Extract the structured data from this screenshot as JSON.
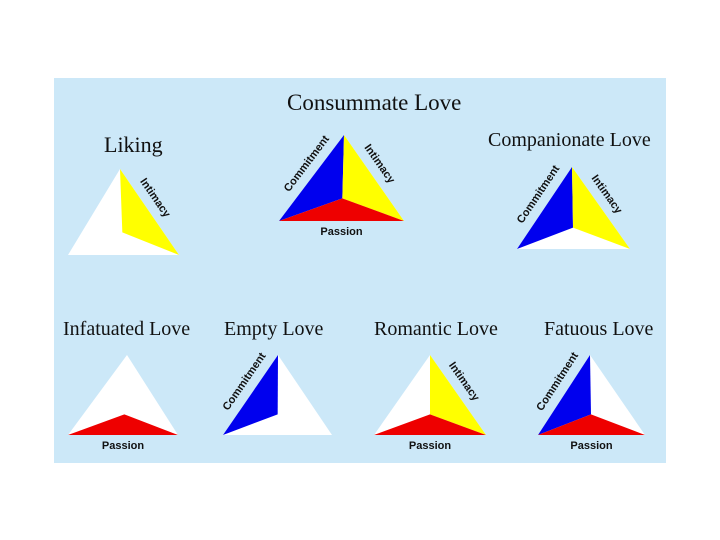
{
  "colors": {
    "background": "#cce8f8",
    "intimacy": "#ffff00",
    "commitment": "#0000ee",
    "passion": "#ee0000",
    "empty": "#ffffff"
  },
  "diagrams": [
    {
      "id": "consummate",
      "title": "Consummate Love",
      "components": [
        "intimacy",
        "commitment",
        "passion"
      ],
      "labels": {
        "intimacy": "Intimacy",
        "commitment": "Commitment",
        "passion": "Passion"
      }
    },
    {
      "id": "liking",
      "title": "Liking",
      "components": [
        "intimacy"
      ],
      "labels": {
        "intimacy": "Intimacy"
      }
    },
    {
      "id": "companionate",
      "title": "Companionate Love",
      "components": [
        "intimacy",
        "commitment"
      ],
      "labels": {
        "intimacy": "Intimacy",
        "commitment": "Commitment"
      }
    },
    {
      "id": "infatuated",
      "title": "Infatuated Love",
      "components": [
        "passion"
      ],
      "labels": {
        "passion": "Passion"
      }
    },
    {
      "id": "empty",
      "title": "Empty Love",
      "components": [
        "commitment"
      ],
      "labels": {
        "commitment": "Commitment"
      }
    },
    {
      "id": "romantic",
      "title": "Romantic Love",
      "components": [
        "intimacy",
        "passion"
      ],
      "labels": {
        "intimacy": "Intimacy",
        "passion": "Passion"
      }
    },
    {
      "id": "fatuous",
      "title": "Fatuous Love",
      "components": [
        "commitment",
        "passion"
      ],
      "labels": {
        "commitment": "Commitment",
        "passion": "Passion"
      }
    }
  ]
}
